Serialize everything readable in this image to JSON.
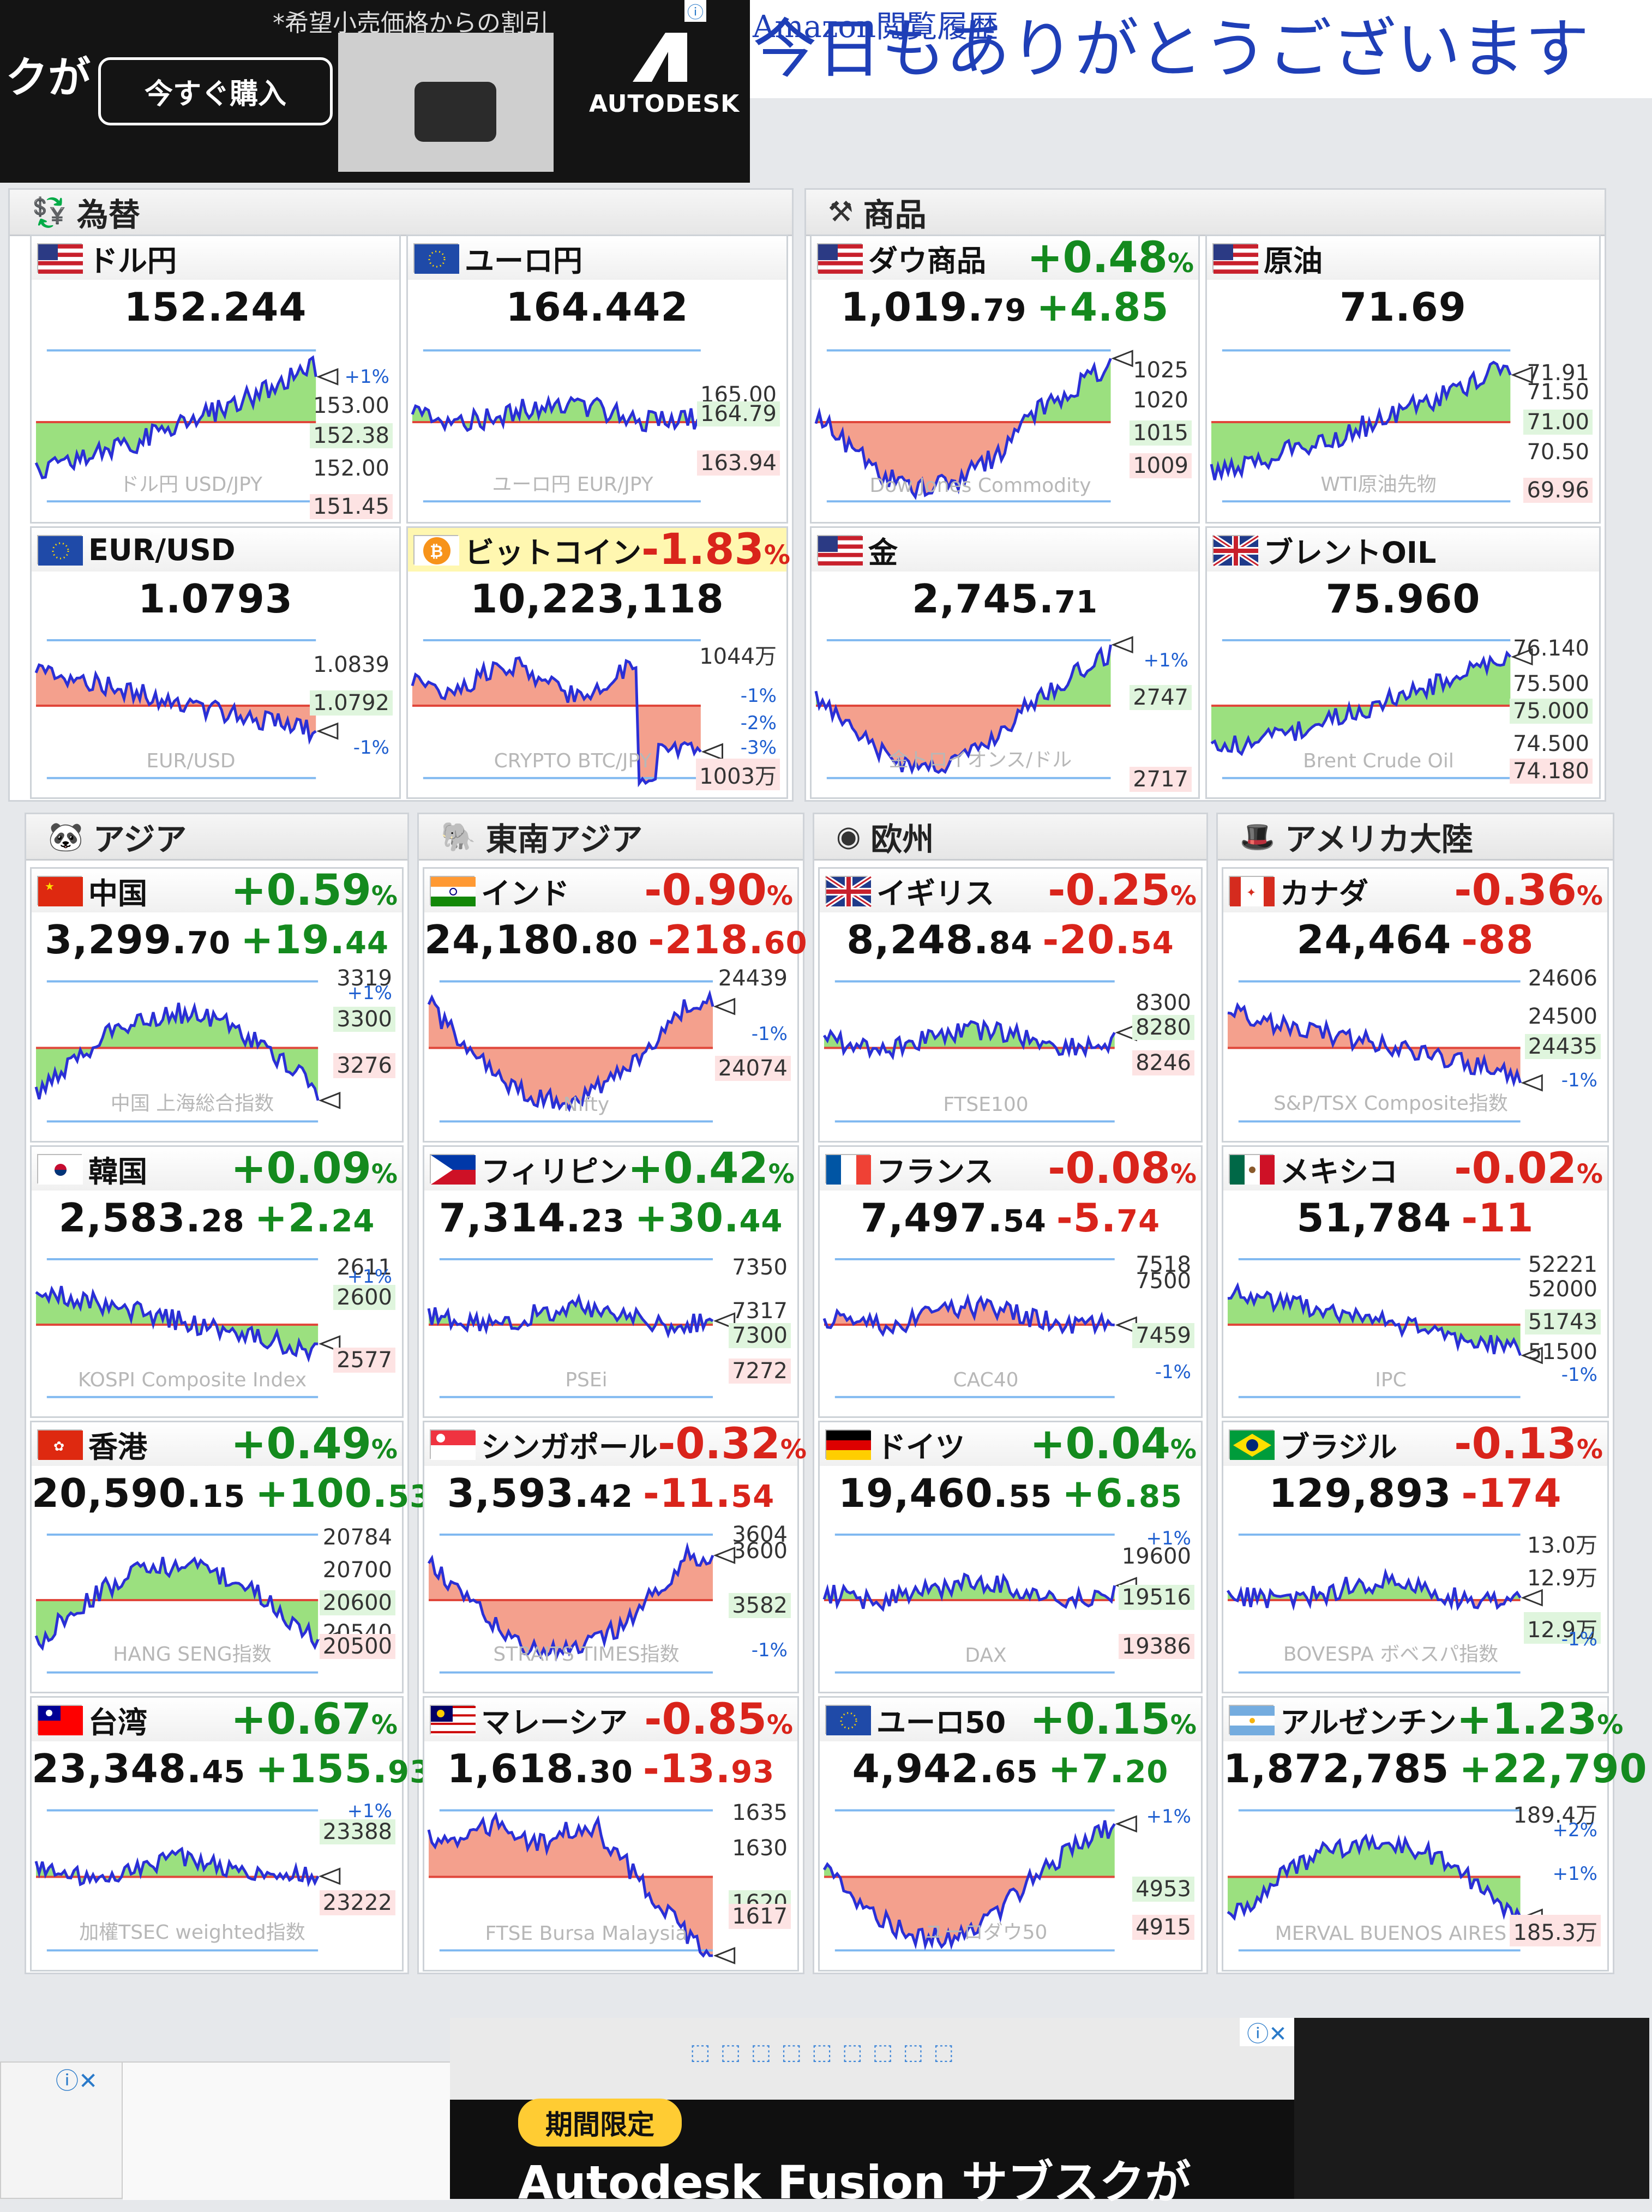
{
  "top_ad": {
    "fragment": "クが",
    "note": "*希望小売価格からの割引",
    "buy_label": "今すぐ購入",
    "brand": "AUTODESK",
    "info": "ⓘ"
  },
  "greeting": {
    "link_fragment": "Amazon閲覧履歴",
    "text": "今日もありがとうございます"
  },
  "sections": {
    "fx": "為替",
    "commodities": "商品",
    "asia": "アジア",
    "se_asia": "東南アジア",
    "europe": "欧州",
    "americas": "アメリカ大陸"
  },
  "cards": {
    "usdjpy": {
      "name": "ドル円",
      "price": "152.244",
      "wm": "ドル円 USD/JPY",
      "labels": [
        "+1%",
        "153.00",
        "152.38",
        "152.00",
        "151.45"
      ]
    },
    "eurjpy": {
      "name": "ユーロ円",
      "price": "164.442",
      "wm": "ユーロ円 EUR/JPY",
      "labels": [
        "165.00",
        "164.79",
        "163.94"
      ]
    },
    "eurusd": {
      "name": "EUR/USD",
      "price": "1.0793",
      "wm": "EUR/USD",
      "labels": [
        "1.0839",
        "1.0792",
        "-1%"
      ]
    },
    "btc": {
      "name": "ビットコイン",
      "pct": "-1.83",
      "price": "10,223,118",
      "wm": "CRYPTO BTC/JPY",
      "labels": [
        "1044万",
        "-1%",
        "-2%",
        "-3%",
        "1003万"
      ]
    },
    "dow_comm": {
      "name": "ダウ商品",
      "pct": "+0.48",
      "price_main": "1,019.",
      "price_dec": "79",
      "chg": "+4.85",
      "wm": "Dow Jones Commodity",
      "labels": [
        "1025",
        "1020",
        "1015",
        "1009"
      ]
    },
    "crude": {
      "name": "原油",
      "price": "71.69",
      "wm": "WTI原油先物",
      "labels": [
        "71.91",
        "71.50",
        "71.00",
        "70.50",
        "69.96"
      ]
    },
    "gold": {
      "name": "金",
      "price_main": "2,745.",
      "price_dec": "71",
      "wm": "金トロイオンス/ドル",
      "labels": [
        "+1%",
        "2747",
        "2717"
      ]
    },
    "brent": {
      "name": "ブレントOIL",
      "price": "75.960",
      "wm": "Brent Crude Oil",
      "labels": [
        "76.140",
        "75.500",
        "75.000",
        "74.500",
        "74.180"
      ]
    },
    "china": {
      "name": "中国",
      "pct": "+0.59",
      "price_main": "3,299.",
      "price_dec": "70",
      "chg_main": "+19.",
      "chg_dec": "44",
      "wm": "中国 上海総合指数",
      "labels": [
        "3319",
        "+1%",
        "3300",
        "3276"
      ]
    },
    "india": {
      "name": "インド",
      "pct": "-0.90",
      "price_main": "24,180.",
      "price_dec": "80",
      "chg_main": "-218.",
      "chg_dec": "60",
      "wm": "Nifty",
      "labels": [
        "24439",
        "-1%",
        "24074"
      ]
    },
    "uk": {
      "name": "イギリス",
      "pct": "-0.25",
      "price_main": "8,248.",
      "price_dec": "84",
      "chg_main": "-20.",
      "chg_dec": "54",
      "wm": "FTSE100",
      "labels": [
        "8300",
        "8280",
        "8246"
      ]
    },
    "canada": {
      "name": "カナダ",
      "pct": "-0.36",
      "price_main": "24,464",
      "price_dec": "",
      "chg_main": "-88",
      "chg_dec": "",
      "wm": "S&P/TSX Composite指数",
      "labels": [
        "24606",
        "24500",
        "24435",
        "-1%"
      ]
    },
    "korea": {
      "name": "韓国",
      "pct": "+0.09",
      "price_main": "2,583.",
      "price_dec": "28",
      "chg_main": "+2.",
      "chg_dec": "24",
      "wm": "KOSPI Composite Index",
      "labels": [
        "2611",
        "+1%",
        "2600",
        "2577"
      ]
    },
    "philippines": {
      "name": "フィリピン",
      "pct": "+0.42",
      "price_main": "7,314.",
      "price_dec": "23",
      "chg_main": "+30.",
      "chg_dec": "44",
      "wm": "PSEi",
      "labels": [
        "7350",
        "7317",
        "7300",
        "7272"
      ]
    },
    "france": {
      "name": "フランス",
      "pct": "-0.08",
      "price_main": "7,497.",
      "price_dec": "54",
      "chg_main": "-5.",
      "chg_dec": "74",
      "wm": "CAC40",
      "labels": [
        "7518",
        "7500",
        "7459",
        "-1%"
      ]
    },
    "mexico": {
      "name": "メキシコ",
      "pct": "-0.02",
      "price_main": "51,784",
      "price_dec": "",
      "chg_main": "-11",
      "chg_dec": "",
      "wm": "IPC",
      "labels": [
        "52221",
        "52000",
        "51743",
        "51500",
        "-1%"
      ]
    },
    "hongkong": {
      "name": "香港",
      "pct": "+0.49",
      "price_main": "20,590.",
      "price_dec": "15",
      "chg_main": "+100.",
      "chg_dec": "53",
      "wm": "HANG SENG指数",
      "labels": [
        "20784",
        "20700",
        "20600",
        "20540",
        "20500"
      ]
    },
    "singapore": {
      "name": "シンガポール",
      "pct": "-0.32",
      "price_main": "3,593.",
      "price_dec": "42",
      "chg_main": "-11.",
      "chg_dec": "54",
      "wm": "STRAITS TIMES指数",
      "labels": [
        "3604",
        "3600",
        "3582",
        "-1%"
      ]
    },
    "germany": {
      "name": "ドイツ",
      "pct": "+0.04",
      "price_main": "19,460.",
      "price_dec": "55",
      "chg_main": "+6.",
      "chg_dec": "85",
      "wm": "DAX",
      "labels": [
        "+1%",
        "19600",
        "19516",
        "19386"
      ]
    },
    "brazil": {
      "name": "ブラジル",
      "pct": "-0.13",
      "price_main": "129,893",
      "price_dec": "",
      "chg_main": "-174",
      "chg_dec": "",
      "wm": "BOVESPA ボベスパ指数",
      "labels": [
        "13.0万",
        "12.9万",
        "12.9万",
        "-1%"
      ]
    },
    "taiwan": {
      "name": "台湾",
      "pct": "+0.67",
      "price_main": "23,348.",
      "price_dec": "45",
      "chg_main": "+155.",
      "chg_dec": "93",
      "wm": "加權TSEC weighted指数",
      "labels": [
        "+1%",
        "23388",
        "23222"
      ]
    },
    "malaysia": {
      "name": "マレーシア",
      "pct": "-0.85",
      "price_main": "1,618.",
      "price_dec": "30",
      "chg_main": "-13.",
      "chg_dec": "93",
      "wm": "FTSE Bursa Malaysia",
      "labels": [
        "1635",
        "1630",
        "1620",
        "1617"
      ]
    },
    "euro50": {
      "name": "ユーロ50",
      "pct": "+0.15",
      "price_main": "4,942.",
      "price_dec": "65",
      "chg_main": "+7.",
      "chg_dec": "20",
      "wm": "ユーロダウ50",
      "labels": [
        "+1%",
        "4953",
        "4915"
      ]
    },
    "argentina": {
      "name": "アルゼンチン",
      "pct": "+1.23",
      "price_main": "1,872,785",
      "price_dec": "",
      "chg_main": "+22,790",
      "chg_dec": "",
      "wm": "MERVAL BUENOS AIRES",
      "labels": [
        "189.4万",
        "+2%",
        "+1%",
        "185.3万"
      ]
    }
  },
  "bottom_ad": {
    "badge": "期間限定",
    "promo": "Autodesk Fusion サブスクが",
    "icons": "⬚⬚⬚⬚⬚⬚⬚⬚⬚"
  }
}
